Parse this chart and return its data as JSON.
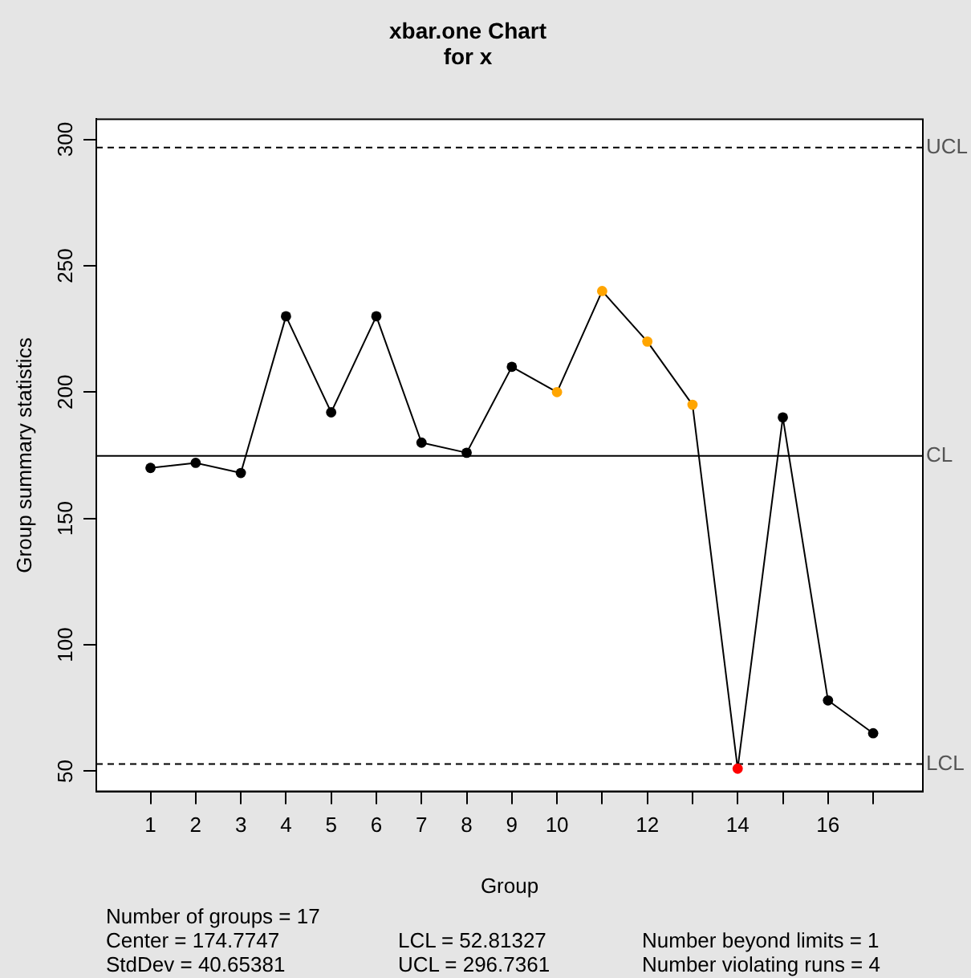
{
  "chart_data": {
    "type": "line",
    "title": "xbar.one Chart",
    "subtitle": "for x",
    "xlabel": "Group",
    "ylabel": "Group summary statistics",
    "x": [
      1,
      2,
      3,
      4,
      5,
      6,
      7,
      8,
      9,
      10,
      11,
      12,
      13,
      14,
      15,
      16,
      17
    ],
    "series": [
      {
        "color": "#000000",
        "values": [
          170,
          172,
          168,
          230,
          192,
          230,
          180,
          176,
          210,
          200,
          240,
          220,
          195,
          51,
          190,
          78,
          65
        ],
        "colors": [
          "#000000",
          "#000000",
          "#000000",
          "#000000",
          "#000000",
          "#000000",
          "#000000",
          "#000000",
          "#000000",
          "#ffa500",
          "#ffa500",
          "#ffa500",
          "#ffa500",
          "#ff0000",
          "#000000",
          "#000000",
          "#000000"
        ]
      }
    ],
    "xlim": [
      -0.2,
      18.1
    ],
    "ylim": [
      42,
      308
    ],
    "xticks": [
      1,
      2,
      3,
      4,
      5,
      6,
      7,
      8,
      9,
      10,
      {
        "value": 11,
        "label": null
      },
      12,
      {
        "value": 13,
        "label": null
      },
      14,
      {
        "value": 15,
        "label": null
      },
      16,
      {
        "value": 17,
        "label": null
      }
    ],
    "yticks": [
      50,
      100,
      150,
      200,
      250,
      300
    ],
    "marker": "circle",
    "line_style": "solid",
    "ref_lines": [
      {
        "axis": "y",
        "value": 296.7361,
        "label": "UCL",
        "line_style": "dashed",
        "color": "#000000"
      },
      {
        "axis": "y",
        "value": 174.7747,
        "label": "CL",
        "line_style": "solid",
        "color": "#000000"
      },
      {
        "axis": "y",
        "value": 52.81327,
        "label": "LCL",
        "line_style": "dashed",
        "color": "#000000"
      }
    ],
    "annotations": [
      "Number of groups = 17",
      "Center = 174.7747",
      "StdDev = 40.65381",
      "LCL = 52.81327",
      "UCL = 296.7361",
      "Number beyond limits = 1",
      "Number violating runs = 4"
    ]
  }
}
